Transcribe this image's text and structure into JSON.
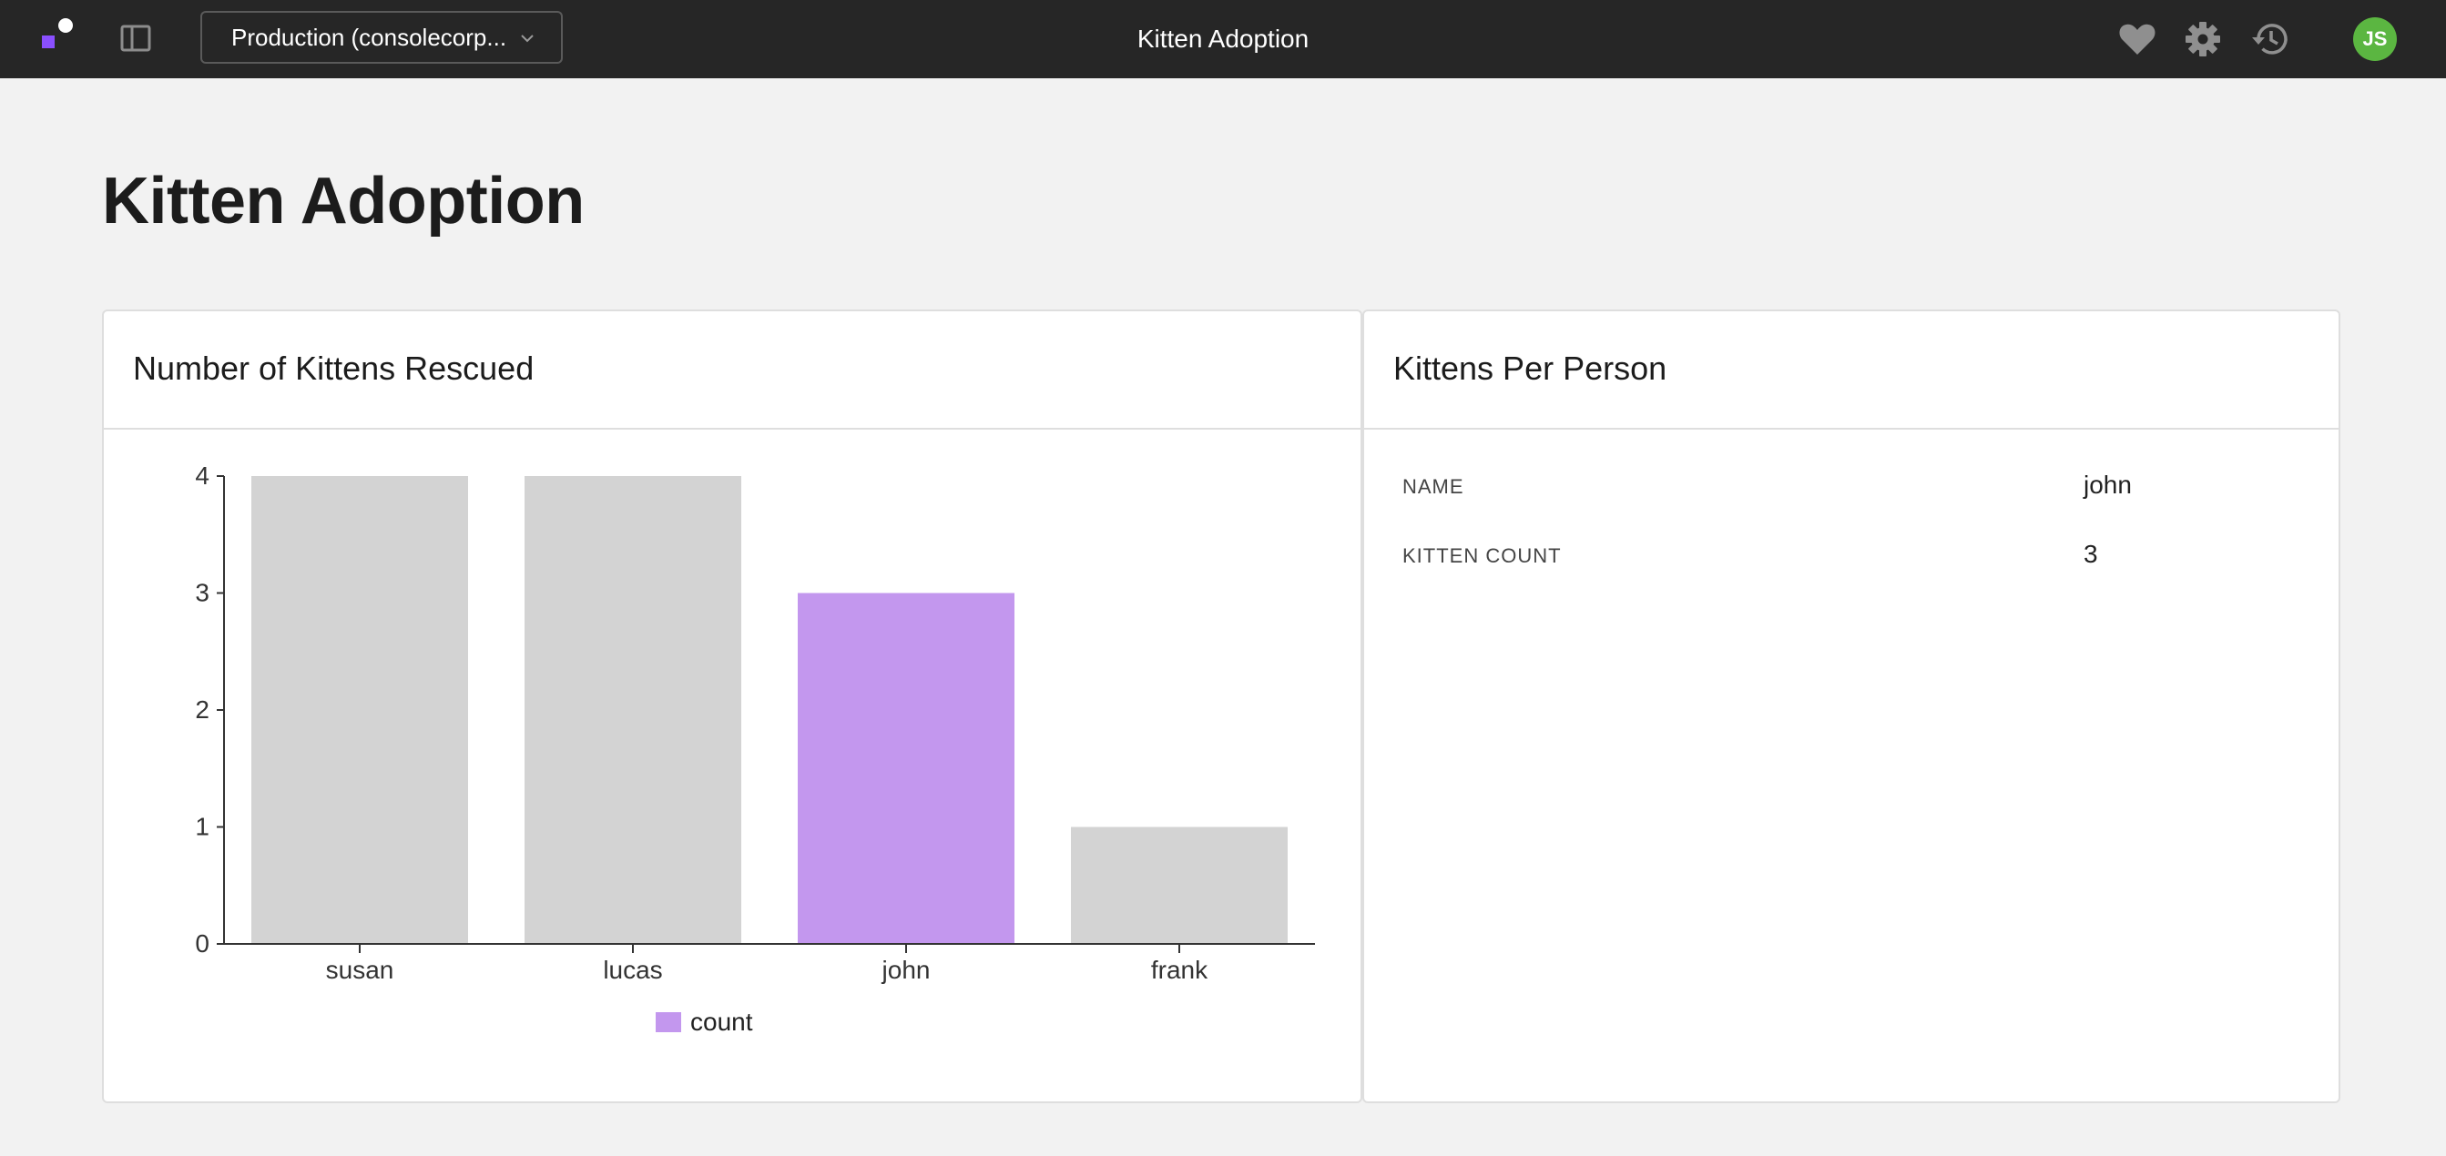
{
  "topbar": {
    "environment": "Production (consolecorp...",
    "app_title": "Kitten Adoption",
    "avatar_initials": "JS",
    "icons": [
      "logo",
      "panel-toggle-icon",
      "chevron-down-icon",
      "heart-icon",
      "gear-icon",
      "history-icon"
    ]
  },
  "page": {
    "title": "Kitten Adoption"
  },
  "chart_card": {
    "title": "Number of Kittens Rescued"
  },
  "detail_card": {
    "title": "Kittens Per Person",
    "fields": [
      {
        "label": "NAME",
        "value": "john"
      },
      {
        "label": "KITTEN COUNT",
        "value": "3"
      }
    ]
  },
  "colors": {
    "topbar": "#262626",
    "accent": "#8a4fff",
    "bar_default": "#d3d3d3",
    "bar_selected": "#c397ee",
    "avatar": "#5bb641"
  },
  "chart_data": {
    "type": "bar",
    "categories": [
      "susan",
      "lucas",
      "john",
      "frank"
    ],
    "series": [
      {
        "name": "count",
        "values": [
          4,
          4,
          3,
          1
        ]
      }
    ],
    "highlighted_category": "john",
    "xlabel": "",
    "ylabel": "",
    "ylim": [
      0,
      4
    ],
    "yticks": [
      0,
      1,
      2,
      3,
      4
    ],
    "grid": false,
    "legend": "bottom-center"
  }
}
